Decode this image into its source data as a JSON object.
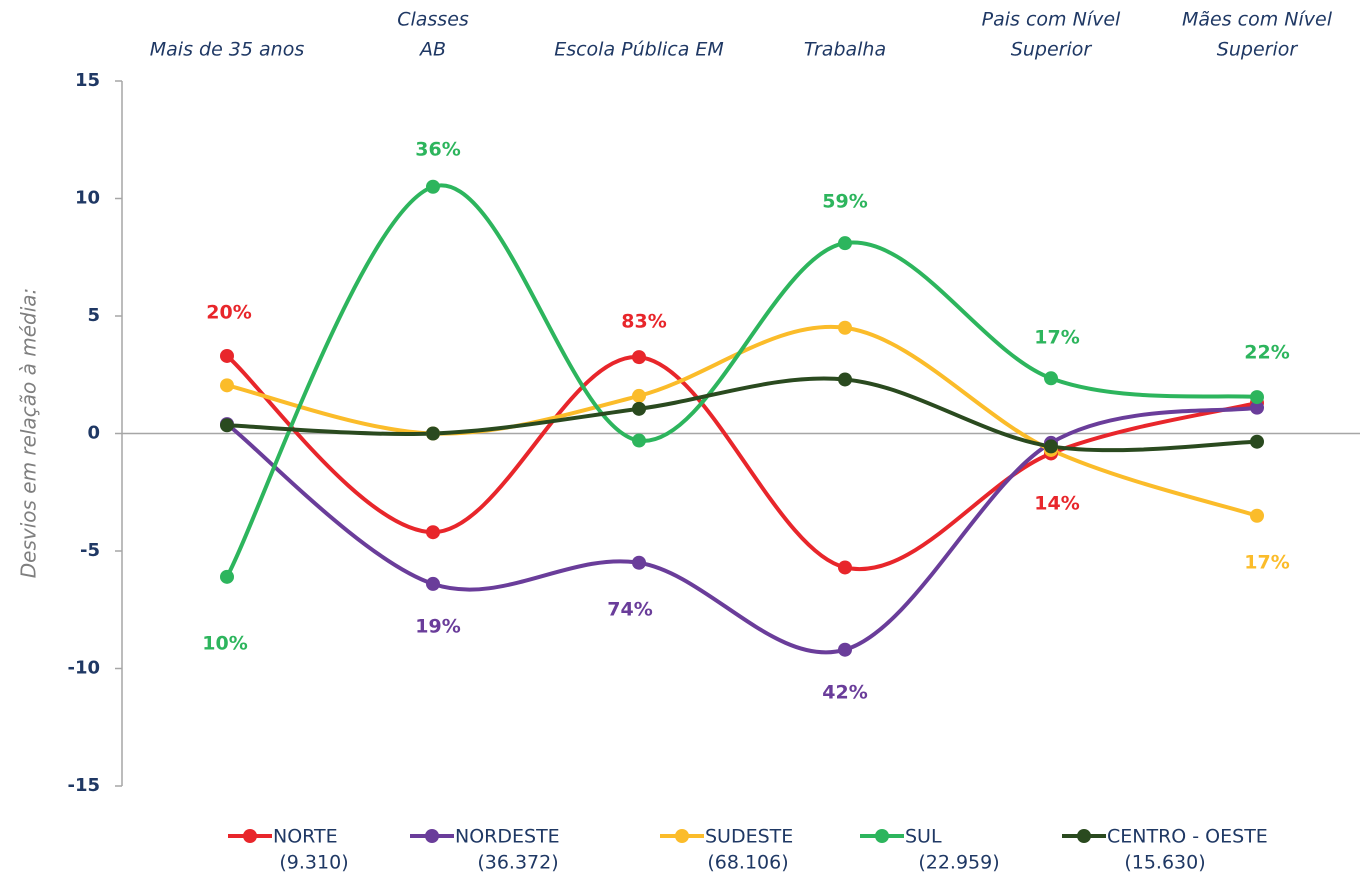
{
  "chart_data": {
    "type": "line",
    "categories": [
      [
        "Mais de 35 anos"
      ],
      [
        "Classes",
        "AB"
      ],
      [
        "Escola Pública EM"
      ],
      [
        "Trabalha"
      ],
      [
        "Pais com Nível",
        "Superior"
      ],
      [
        "Mães com Nível",
        "Superior"
      ]
    ],
    "y_label": "Desvios em relação à média:",
    "ylim": [
      -15,
      15
    ],
    "yticks": [
      15,
      10,
      5,
      0,
      -5,
      -10,
      -15
    ],
    "series": [
      {
        "name": "NORTE",
        "count": "(9.310)",
        "color": "#e8262b",
        "values": [
          3.3,
          -4.2,
          3.25,
          -5.7,
          -0.85,
          1.3
        ]
      },
      {
        "name": "NORDESTE",
        "count": "(36.372)",
        "color": "#6a3d9a",
        "values": [
          0.4,
          -6.4,
          -5.5,
          -9.2,
          -0.4,
          1.1
        ]
      },
      {
        "name": "SUDESTE",
        "count": "(68.106)",
        "color": "#fbbc2a",
        "values": [
          2.05,
          0,
          1.6,
          4.5,
          -0.7,
          -3.5
        ]
      },
      {
        "name": "SUL",
        "count": "(22.959)",
        "color": "#2db55d",
        "values": [
          -6.1,
          10.5,
          -0.3,
          8.1,
          2.35,
          1.55
        ]
      },
      {
        "name": "CENTRO - OESTE",
        "count": "(15.630)",
        "color": "#2a4a1f",
        "values": [
          0.35,
          0,
          1.05,
          2.3,
          -0.55,
          -0.35
        ]
      }
    ],
    "annotations": [
      {
        "text": "20%",
        "series": "NORTE"
      },
      {
        "text": "36%",
        "series": "SUL"
      },
      {
        "text": "83%",
        "series": "NORTE"
      },
      {
        "text": "59%",
        "series": "SUL"
      },
      {
        "text": "17%",
        "series": "SUL"
      },
      {
        "text": "22%",
        "series": "SUL"
      },
      {
        "text": "14%",
        "series": "NORTE"
      },
      {
        "text": "17%",
        "series": "SUDESTE"
      },
      {
        "text": "10%",
        "series": "SUL"
      },
      {
        "text": "19%",
        "series": "NORDESTE"
      },
      {
        "text": "74%",
        "series": "NORDESTE"
      },
      {
        "text": "42%",
        "series": "NORDESTE"
      }
    ]
  }
}
